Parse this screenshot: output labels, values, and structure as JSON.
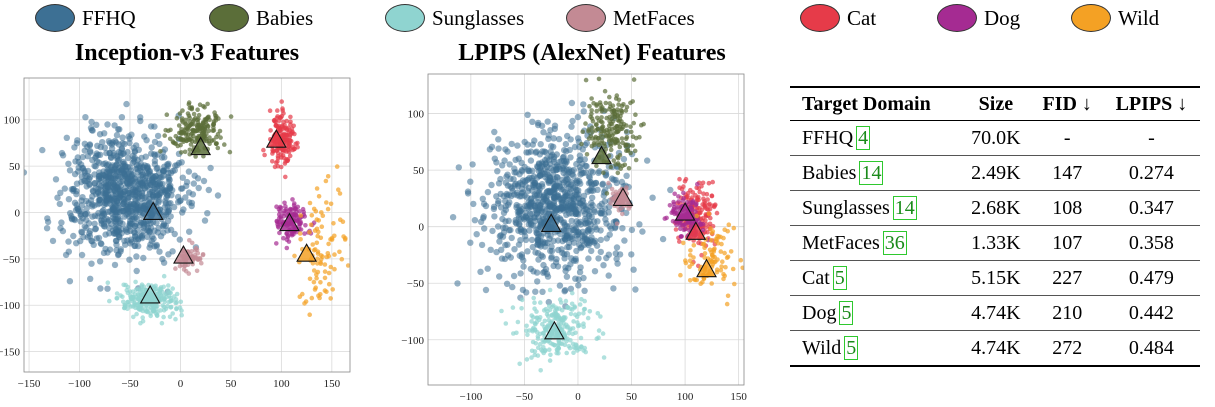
{
  "legend": [
    {
      "label": "FFHQ",
      "color": "#3d7094"
    },
    {
      "label": "Babies",
      "color": "#5b6e39"
    },
    {
      "label": "Sunglasses",
      "color": "#8fd4d0"
    },
    {
      "label": "MetFaces",
      "color": "#c38a94"
    },
    {
      "label": "Cat",
      "color": "#e63b49"
    },
    {
      "label": "Dog",
      "color": "#a52b92"
    },
    {
      "label": "Wild",
      "color": "#f4a124"
    }
  ],
  "chart_data": [
    {
      "type": "scatter",
      "title": "Inception-v3 Features",
      "xlim": [
        -155,
        168
      ],
      "ylim": [
        -172,
        145
      ],
      "xticks": [
        -150,
        -100,
        -50,
        0,
        50,
        100,
        150
      ],
      "yticks": [
        -150,
        -100,
        -50,
        0,
        50,
        100
      ],
      "grid": true,
      "clusters": [
        {
          "name": "FFHQ",
          "center": [
            -55,
            20
          ],
          "spread": [
            48,
            55
          ],
          "centroid": [
            -27,
            0
          ]
        },
        {
          "name": "Babies",
          "center": [
            15,
            90
          ],
          "spread": [
            22,
            20
          ],
          "centroid": [
            20,
            70
          ]
        },
        {
          "name": "Sunglasses",
          "center": [
            -30,
            -95
          ],
          "spread": [
            25,
            14
          ],
          "centroid": [
            -30,
            -90
          ]
        },
        {
          "name": "MetFaces",
          "center": [
            10,
            -50
          ],
          "spread": [
            12,
            10
          ],
          "centroid": [
            3,
            -47
          ]
        },
        {
          "name": "Cat",
          "center": [
            100,
            80
          ],
          "spread": [
            10,
            22
          ],
          "centroid": [
            95,
            78
          ]
        },
        {
          "name": "Dog",
          "center": [
            110,
            -10
          ],
          "spread": [
            14,
            17
          ],
          "centroid": [
            108,
            -12
          ]
        },
        {
          "name": "Wild",
          "center": [
            140,
            -40
          ],
          "spread": [
            20,
            45
          ],
          "centroid": [
            125,
            -45
          ]
        }
      ]
    },
    {
      "type": "scatter",
      "title": "LPIPS (AlexNet) Features",
      "xlim": [
        -140,
        155
      ],
      "ylim": [
        -140,
        135
      ],
      "xticks": [
        -100,
        -50,
        0,
        50,
        100,
        150
      ],
      "yticks": [
        -100,
        -50,
        0,
        50,
        100
      ],
      "grid": true,
      "clusters": [
        {
          "name": "FFHQ",
          "center": [
            -20,
            20
          ],
          "spread": [
            55,
            52
          ],
          "centroid": [
            -25,
            2
          ]
        },
        {
          "name": "Babies",
          "center": [
            30,
            85
          ],
          "spread": [
            18,
            28
          ],
          "centroid": [
            22,
            62
          ]
        },
        {
          "name": "Sunglasses",
          "center": [
            -20,
            -90
          ],
          "spread": [
            28,
            22
          ],
          "centroid": [
            -22,
            -93
          ]
        },
        {
          "name": "MetFaces",
          "center": [
            40,
            25
          ],
          "spread": [
            8,
            10
          ],
          "centroid": [
            42,
            25
          ]
        },
        {
          "name": "Cat",
          "center": [
            110,
            10
          ],
          "spread": [
            16,
            25
          ],
          "centroid": [
            110,
            -5
          ]
        },
        {
          "name": "Dog",
          "center": [
            100,
            10
          ],
          "spread": [
            12,
            15
          ],
          "centroid": [
            100,
            12
          ]
        },
        {
          "name": "Wild",
          "center": [
            125,
            -30
          ],
          "spread": [
            20,
            25
          ],
          "centroid": [
            120,
            -38
          ]
        }
      ]
    },
    {
      "type": "table",
      "headers": [
        "Target Domain",
        "Size",
        "FID ↓",
        "LPIPS ↓"
      ],
      "rows": [
        {
          "domain": "FFHQ",
          "cite": "4",
          "size": "70.0K",
          "fid": "-",
          "lpips": "-"
        },
        {
          "domain": "Babies",
          "cite": "14",
          "size": "2.49K",
          "fid": "147",
          "lpips": "0.274"
        },
        {
          "domain": "Sunglasses",
          "cite": "14",
          "size": "2.68K",
          "fid": "108",
          "lpips": "0.347"
        },
        {
          "domain": "MetFaces",
          "cite": "36",
          "size": "1.33K",
          "fid": "107",
          "lpips": "0.358"
        },
        {
          "domain": "Cat",
          "cite": "5",
          "size": "5.15K",
          "fid": "227",
          "lpips": "0.479"
        },
        {
          "domain": "Dog",
          "cite": "5",
          "size": "4.74K",
          "fid": "210",
          "lpips": "0.442"
        },
        {
          "domain": "Wild",
          "cite": "5",
          "size": "4.74K",
          "fid": "272",
          "lpips": "0.484"
        }
      ]
    }
  ]
}
